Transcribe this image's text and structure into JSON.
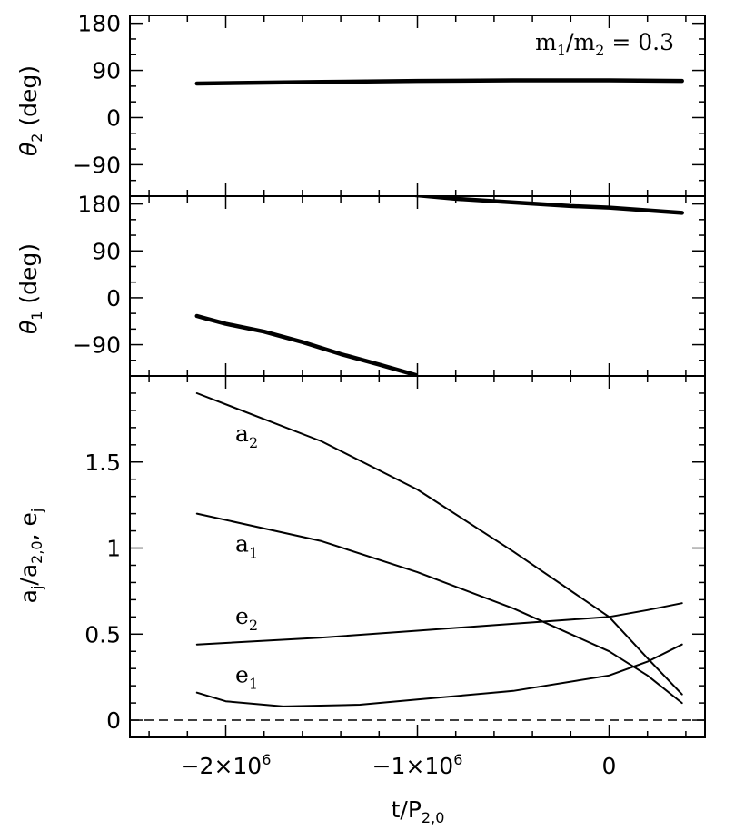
{
  "chart_data": {
    "type": "line",
    "shared_x": {
      "label": "t/P",
      "label_sub": "2,0",
      "range": [
        -2500000,
        500000
      ],
      "tick_labels": [
        {
          "value": -2000000,
          "mantissa": "−2×10",
          "exponent": "6"
        },
        {
          "value": -1000000,
          "mantissa": "−1×10",
          "exponent": "6"
        },
        {
          "value": 0,
          "mantissa": "0",
          "exponent": ""
        }
      ]
    },
    "panels": [
      {
        "id": "theta2",
        "ylabel": {
          "symbol": "θ",
          "sub": "2",
          "rest": " (deg)"
        },
        "ylim": [
          -150,
          195
        ],
        "yticks": [
          {
            "value": 180,
            "label": "180"
          },
          {
            "value": 90,
            "label": "90"
          },
          {
            "value": 0,
            "label": "0"
          },
          {
            "value": -90,
            "label": "−90"
          }
        ],
        "annotation": {
          "base": "m",
          "sub1": "1",
          "slash": "/m",
          "sub2": "2",
          "rest": " = 0.3"
        },
        "series": [
          {
            "name": "theta2",
            "x": [
              -2150000,
              -1500000,
              -1000000,
              -500000,
              0,
              380000
            ],
            "y": [
              65,
              68,
              70,
              71,
              71,
              70
            ],
            "thick": true
          }
        ]
      },
      {
        "id": "theta1",
        "ylabel": {
          "symbol": "θ",
          "sub": "1",
          "rest": " (deg)"
        },
        "ylim": [
          -150,
          195
        ],
        "yticks": [
          {
            "value": 180,
            "label": "180"
          },
          {
            "value": 90,
            "label": "90"
          },
          {
            "value": 0,
            "label": "0"
          },
          {
            "value": -90,
            "label": "−90"
          }
        ],
        "series": [
          {
            "name": "theta1-early",
            "x": [
              -2150000,
              -2100000,
              -2000000,
              -1800000,
              -1600000,
              -1400000,
              -1200000,
              -1010000
            ],
            "y": [
              -35,
              -40,
              -50,
              -65,
              -85,
              -108,
              -128,
              -148
            ],
            "thick": true
          },
          {
            "name": "theta1-late",
            "x": [
              -1010000,
              -800000,
              -500000,
              -200000,
              0,
              380000
            ],
            "y": [
              197,
              190,
              183,
              176,
              173,
              163
            ],
            "thick": true
          }
        ]
      },
      {
        "id": "ae",
        "ylabel": {
          "text": "a",
          "sub": "j",
          "mid": "/a",
          "sub2": "2,0",
          "tail": ", e",
          "sub3": "j"
        },
        "ylim": [
          -0.1,
          2.0
        ],
        "yticks": [
          {
            "value": 0,
            "label": "0"
          },
          {
            "value": 0.5,
            "label": "0.5"
          },
          {
            "value": 1,
            "label": "1"
          },
          {
            "value": 1.5,
            "label": "1.5"
          }
        ],
        "dashed_zero": true,
        "series": [
          {
            "name": "a2",
            "label": "a",
            "label_sub": "2",
            "label_pos": [
              -1950000,
              1.62
            ],
            "x": [
              -2150000,
              -1500000,
              -1000000,
              -500000,
              0,
              200000,
              380000
            ],
            "y": [
              1.9,
              1.62,
              1.34,
              0.98,
              0.6,
              0.36,
              0.15
            ]
          },
          {
            "name": "a1",
            "label": "a",
            "label_sub": "1",
            "label_pos": [
              -1950000,
              0.98
            ],
            "x": [
              -2150000,
              -1500000,
              -1000000,
              -500000,
              0,
              200000,
              380000
            ],
            "y": [
              1.2,
              1.04,
              0.86,
              0.65,
              0.4,
              0.26,
              0.1
            ]
          },
          {
            "name": "e2",
            "label": "e",
            "label_sub": "2",
            "label_pos": [
              -1950000,
              0.56
            ],
            "x": [
              -2150000,
              -1500000,
              -1000000,
              -500000,
              0,
              200000,
              380000
            ],
            "y": [
              0.44,
              0.48,
              0.52,
              0.56,
              0.6,
              0.64,
              0.68
            ]
          },
          {
            "name": "e1",
            "label": "e",
            "label_sub": "1",
            "label_pos": [
              -1950000,
              0.22
            ],
            "x": [
              -2150000,
              -2000000,
              -1700000,
              -1300000,
              -1000000,
              -500000,
              0,
              200000,
              380000
            ],
            "y": [
              0.16,
              0.11,
              0.08,
              0.09,
              0.12,
              0.17,
              0.26,
              0.34,
              0.44
            ]
          }
        ]
      }
    ]
  }
}
